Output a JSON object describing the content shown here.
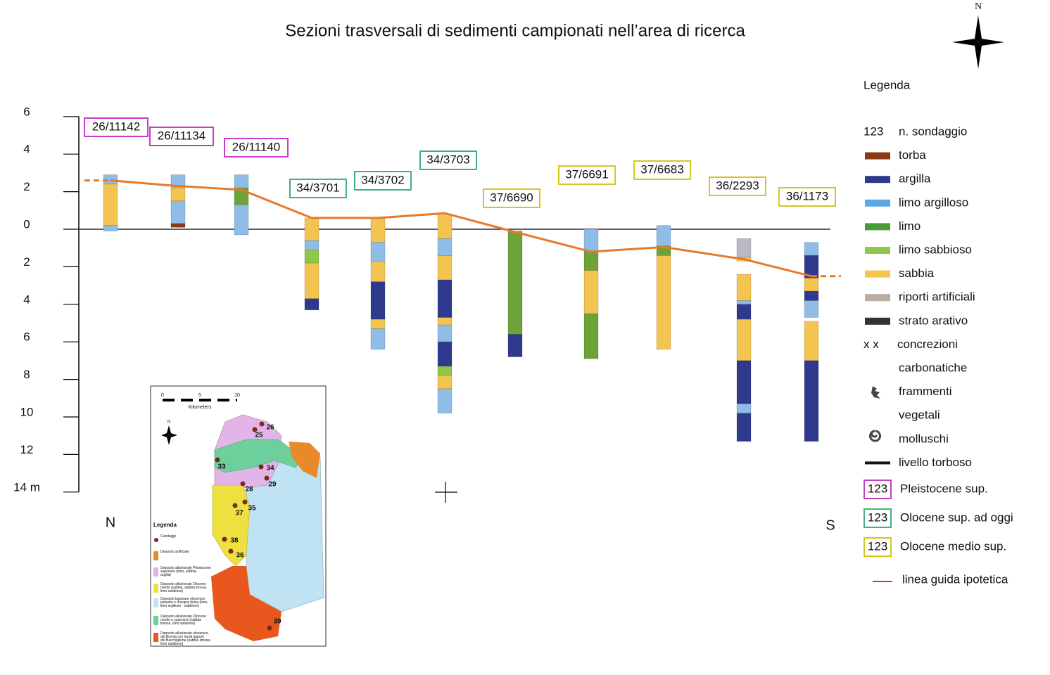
{
  "title": "Sezioni trasversali di sedimenti campionati nell’area di ricerca",
  "compass": "N",
  "axis": {
    "ticks": [
      6,
      4,
      2,
      0,
      {
        "value": -2,
        "label": "2"
      },
      {
        "value": -4,
        "label": "4"
      },
      {
        "value": -6,
        "label": "6"
      },
      {
        "value": -8,
        "label": "8"
      },
      {
        "value": -10,
        "label": "10"
      },
      {
        "value": -12,
        "label": "12"
      },
      {
        "value": -14,
        "label": "14 m"
      }
    ],
    "left_end": "N",
    "right_end": "S"
  },
  "guide_line": {
    "color": "#e8782a",
    "points": [
      2.6,
      2.3,
      2.1,
      0.6,
      0.6,
      0.85,
      -0.15,
      -1.2,
      -0.95,
      -1.6,
      -2.5
    ]
  },
  "boreholes": [
    {
      "label": "26/11142",
      "border": "#c83cc8",
      "layers": [
        {
          "top": 2.9,
          "bottom": 2.4,
          "color": "#8fbde8"
        },
        {
          "top": 2.4,
          "bottom": 0.2,
          "color": "#f3c550"
        },
        {
          "top": 0.2,
          "bottom": -0.1,
          "color": "#8fbde8"
        }
      ]
    },
    {
      "label": "26/11134",
      "border": "#c83cc8",
      "layers": [
        {
          "top": 2.9,
          "bottom": 2.2,
          "color": "#8fbde8"
        },
        {
          "top": 2.2,
          "bottom": 1.5,
          "color": "#f3c550"
        },
        {
          "top": 1.5,
          "bottom": 0.3,
          "color": "#8fbde8"
        },
        {
          "top": 0.3,
          "bottom": 0.1,
          "color": "#8b3a17"
        }
      ]
    },
    {
      "label": "26/11140",
      "border": "#c83cc8",
      "layers": [
        {
          "top": 2.9,
          "bottom": 2.2,
          "color": "#8fbde8"
        },
        {
          "top": 2.2,
          "bottom": 1.3,
          "color": "#6ea33a"
        },
        {
          "top": 1.3,
          "bottom": -0.3,
          "color": "#8fbde8"
        }
      ]
    },
    {
      "label": "34/3701",
      "border": "#3fb37f",
      "layers": [
        {
          "top": 0.6,
          "bottom": -0.6,
          "color": "#f3c550"
        },
        {
          "top": -0.6,
          "bottom": -1.1,
          "color": "#8fbde8"
        },
        {
          "top": -1.1,
          "bottom": -1.8,
          "color": "#8fc74a"
        },
        {
          "top": -1.8,
          "bottom": -3.7,
          "color": "#f3c550"
        },
        {
          "top": -3.7,
          "bottom": -4.3,
          "color": "#2f3a8f"
        }
      ]
    },
    {
      "label": "34/3702",
      "border": "#3fb37f",
      "layers": [
        {
          "top": 0.6,
          "bottom": -0.7,
          "color": "#f3c550"
        },
        {
          "top": -0.7,
          "bottom": -1.7,
          "color": "#8fbde8"
        },
        {
          "top": -1.7,
          "bottom": -2.8,
          "color": "#f3c550"
        },
        {
          "top": -2.8,
          "bottom": -4.8,
          "color": "#2f3a8f"
        },
        {
          "top": -4.8,
          "bottom": -5.3,
          "color": "#f3c550"
        },
        {
          "top": -5.3,
          "bottom": -6.4,
          "color": "#8fbde8"
        }
      ]
    },
    {
      "label": "34/3703",
      "border": "#3fb37f",
      "layers": [
        {
          "top": 0.8,
          "bottom": -0.5,
          "color": "#f3c550"
        },
        {
          "top": -0.5,
          "bottom": -1.4,
          "color": "#8fbde8"
        },
        {
          "top": -1.4,
          "bottom": -2.7,
          "color": "#f3c550"
        },
        {
          "top": -2.7,
          "bottom": -4.7,
          "color": "#2f3a8f"
        },
        {
          "top": -4.7,
          "bottom": -5.1,
          "color": "#f3c550"
        },
        {
          "top": -5.1,
          "bottom": -6.0,
          "color": "#8fbde8"
        },
        {
          "top": -6.0,
          "bottom": -7.3,
          "color": "#2f3a8f"
        },
        {
          "top": -7.3,
          "bottom": -7.8,
          "color": "#8fc74a"
        },
        {
          "top": -7.8,
          "bottom": -8.5,
          "color": "#f3c550"
        },
        {
          "top": -8.5,
          "bottom": -9.8,
          "color": "#8fbde8"
        }
      ]
    },
    {
      "label": "37/6690",
      "border": "#d4c81e",
      "layers": [
        {
          "top": -0.1,
          "bottom": -5.6,
          "color": "#6ea33a"
        },
        {
          "top": -5.6,
          "bottom": -6.8,
          "color": "#2f3a8f"
        }
      ]
    },
    {
      "label": "37/6691",
      "border": "#d4c81e",
      "layers": [
        {
          "top": 0.0,
          "bottom": -1.2,
          "color": "#8fbde8"
        },
        {
          "top": -1.2,
          "bottom": -2.2,
          "color": "#6ea33a"
        },
        {
          "top": -2.2,
          "bottom": -4.5,
          "color": "#f3c550"
        },
        {
          "top": -4.5,
          "bottom": -6.9,
          "color": "#6ea33a"
        }
      ]
    },
    {
      "label": "37/6683",
      "border": "#d4c81e",
      "layers": [
        {
          "top": 0.2,
          "bottom": -0.9,
          "color": "#8fbde8"
        },
        {
          "top": -0.9,
          "bottom": -1.4,
          "color": "#6ea33a"
        },
        {
          "top": -1.4,
          "bottom": -6.4,
          "color": "#f3c550"
        }
      ]
    },
    {
      "label": "36/2293",
      "border": "#d4c81e",
      "layers": [
        {
          "top": -0.5,
          "bottom": -1.5,
          "color": "#b9b9c4"
        },
        {
          "top": -1.5,
          "bottom": -1.7,
          "color": "#f3c550"
        },
        {
          "top": -2.4,
          "bottom": -3.8,
          "color": "#f3c550"
        },
        {
          "top": -3.8,
          "bottom": -4.0,
          "color": "#8fbde8"
        },
        {
          "top": -4.0,
          "bottom": -4.8,
          "color": "#2f3a8f"
        },
        {
          "top": -4.8,
          "bottom": -7.0,
          "color": "#f3c550"
        },
        {
          "top": -7.0,
          "bottom": -9.3,
          "color": "#2f3a8f"
        },
        {
          "top": -9.3,
          "bottom": -9.8,
          "color": "#8fbde8"
        },
        {
          "top": -9.8,
          "bottom": -11.3,
          "color": "#2f3a8f"
        }
      ]
    },
    {
      "label": "36/1173",
      "border": "#d4c81e",
      "layers": [
        {
          "top": -0.7,
          "bottom": -1.4,
          "color": "#8fbde8"
        },
        {
          "top": -1.4,
          "bottom": -2.6,
          "color": "#2f3a8f"
        },
        {
          "top": -2.6,
          "bottom": -3.3,
          "color": "#f3c550"
        },
        {
          "top": -3.3,
          "bottom": -3.8,
          "color": "#2f3a8f"
        },
        {
          "top": -3.8,
          "bottom": -4.7,
          "color": "#8fbde8"
        },
        {
          "top": -4.9,
          "bottom": -7.0,
          "color": "#f3c550"
        },
        {
          "top": -7.0,
          "bottom": -11.3,
          "color": "#2f3a8f"
        }
      ]
    }
  ],
  "legend": {
    "title": "Legenda",
    "items": [
      {
        "symbol": "123",
        "text": "n. sondaggio"
      },
      {
        "color": "#8b3a17",
        "text": "torba"
      },
      {
        "color": "#2f3a8f",
        "text": "argilla"
      },
      {
        "color": "#5aa8e8",
        "text": "limo argilloso"
      },
      {
        "color": "#4a9a3a",
        "text": "limo"
      },
      {
        "color": "#8fc74a",
        "text": "limo sabbioso"
      },
      {
        "color": "#f3c550",
        "text": "sabbia"
      },
      {
        "color": "#b9ada0",
        "text": "riporti artificiali"
      },
      {
        "color": "#333333",
        "text": "strato arativo"
      },
      {
        "symbol": "x x",
        "text": "concrezioni"
      },
      {
        "text": "carbonatiche"
      },
      {
        "text": "frammenti"
      },
      {
        "text": "vegetali"
      },
      {
        "text": "molluschi"
      },
      {
        "color": "#111111",
        "text": "livello torboso"
      }
    ],
    "periods": [
      {
        "symbol": "123",
        "text": "Pleistocene sup.",
        "border": "#c83cc8"
      },
      {
        "symbol": "123",
        "text": "Olocene sup. ad oggi",
        "border": "#3fb37f"
      },
      {
        "symbol": "123",
        "text": "Olocene medio sup.",
        "border": "#d4c81e"
      }
    ],
    "guide": {
      "color": "#e03030",
      "text": "linea guida ipotetica"
    }
  },
  "map": {
    "scale": [
      "0",
      "5",
      "10"
    ],
    "scale_unit": "Kilometers",
    "north": "N",
    "sites": [
      "26",
      "25",
      "33",
      "34",
      "28",
      "29",
      "35",
      "37",
      "38",
      "36",
      "39"
    ],
    "legend_title": "Legenda",
    "legend": [
      {
        "color": "#7a2a1a",
        "text": "Carotaggi"
      },
      {
        "color": "#e88a2a",
        "text": "Deposito artificiale"
      },
      {
        "color": "#e2b4e8",
        "text": "Deposito alluvionale Pleistocene superiore (limo, sabbia, argilla)"
      },
      {
        "color": "#eee040",
        "text": "Deposito alluvionale Olocene medio (sabbia, sabbia limosa, limo sabbioso)"
      },
      {
        "color": "#bfe3f2",
        "text": "Deposito lagunare olocenico palustre e d'acqua dolce (limo, limo argilloso - sabbioso)"
      },
      {
        "color": "#6ccf9c",
        "text": "Deposito alluvionale Olocene medio e superiore (sabbia limosa, limo sabbioso)"
      },
      {
        "color": "#e8581e",
        "text": "Deposito alluvionale olocenico, del Brenta con locali apporti del Bacchiglione (sabbia limosa, limo sabbioso)"
      }
    ]
  }
}
